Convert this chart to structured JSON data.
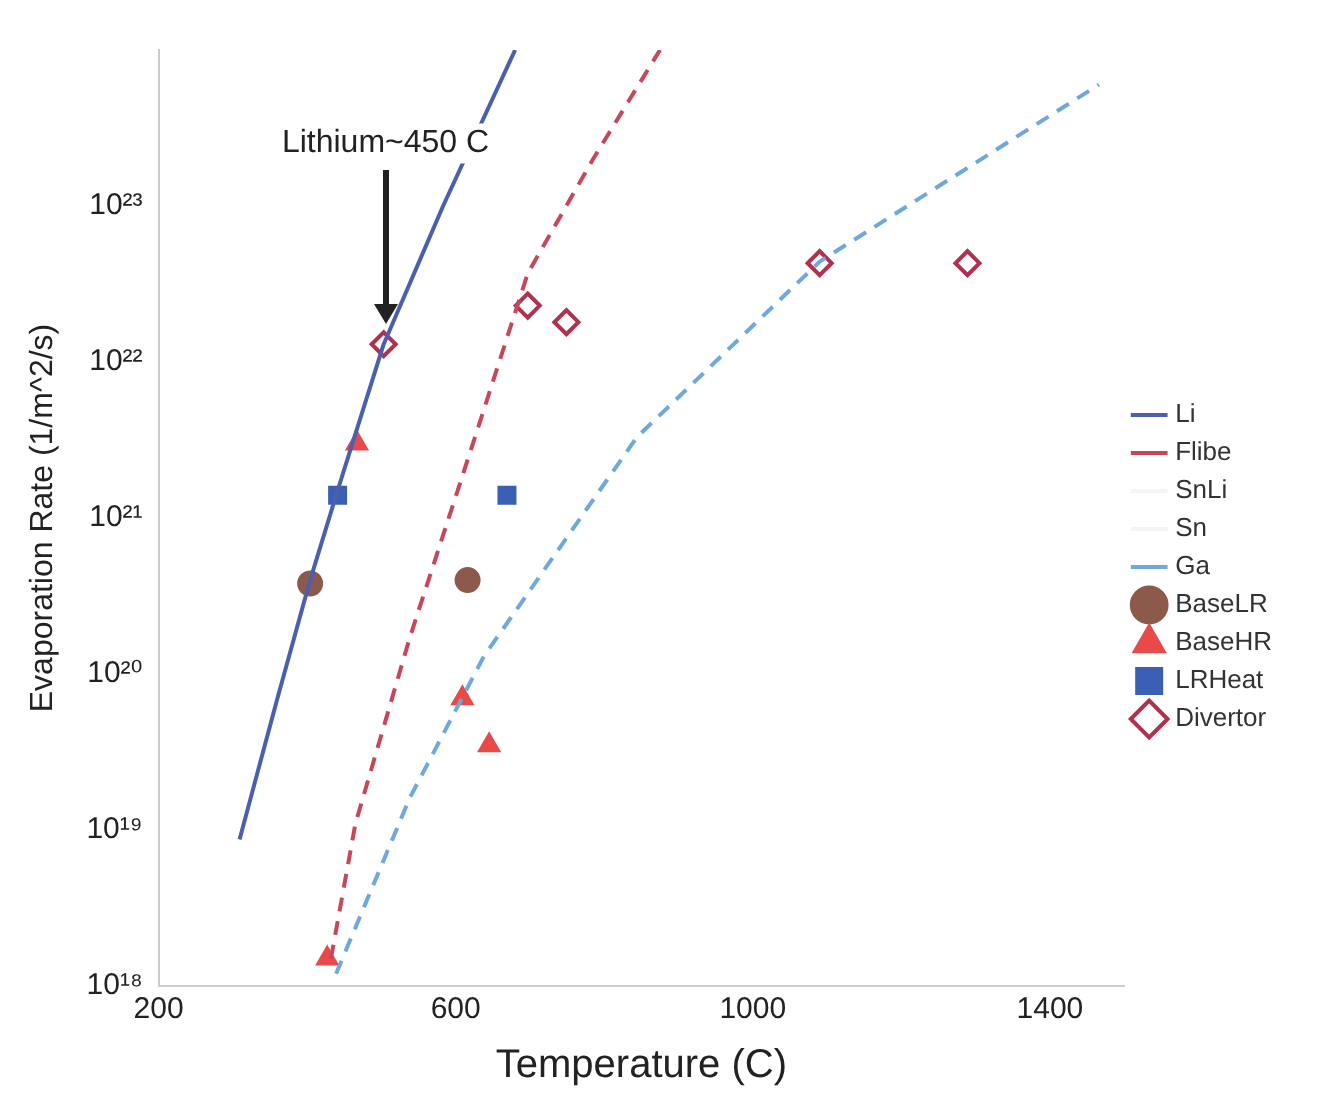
{
  "chart_data": {
    "type": "line",
    "xlabel": "Temperature (C)",
    "ylabel": "Evaporation Rate (1/m^2/s)",
    "xlim": [
      200,
      1500
    ],
    "xticks": [
      200,
      600,
      1000,
      1400
    ],
    "ylim": [
      1e+18,
      1e+24
    ],
    "yticks": [
      {
        "value": 1e+18,
        "label": "10¹⁸"
      },
      {
        "value": 1e+19,
        "label": "10¹⁹"
      },
      {
        "value": 1e+20,
        "label": "10²⁰"
      },
      {
        "value": 1e+21,
        "label": "10²¹"
      },
      {
        "value": 1e+22,
        "label": "10²²"
      },
      {
        "value": 1e+23,
        "label": "10²³"
      }
    ],
    "log": "y",
    "grid": false,
    "legend": "right",
    "annotations": [
      "Lithium~450 C"
    ],
    "series": [
      {
        "name": "Li",
        "line_style": "solid",
        "color": "#4a5fb0",
        "x": [
          309,
          360,
          404,
          441,
          503,
          583,
          680
        ],
        "values": [
          8.7e+18,
          7e+19,
          4e+20,
          1.5e+21,
          1.3e+22,
          1e+23,
          1e+24
        ]
      },
      {
        "name": "Flibe",
        "line_style": "dashed",
        "color": "#c8465a",
        "x": [
          432,
          465,
          538,
          626,
          697,
          785,
          875
        ],
        "values": [
          1.5e+18,
          1.1e+19,
          1.7e+20,
          3.3e+21,
          3.7e+22,
          2e+23,
          1e+24
        ]
      },
      {
        "name": "SnLi",
        "line_style": "solid",
        "color": "#f4f4f4"
      },
      {
        "name": "Sn",
        "line_style": "solid",
        "color": "#f4f4f4"
      },
      {
        "name": "Ga",
        "line_style": "dashed",
        "color": "#6fa8dc",
        "x": [
          439,
          538,
          638,
          844,
          1090,
          1466
        ],
        "values": [
          1.2e+18,
          1.6e+19,
          1.3e+20,
          3.3e+21,
          4.4e+22,
          6e+23
        ]
      },
      {
        "name": "BaseLR",
        "type": "scatter",
        "marker": "circle",
        "color": "#8b5a4a",
        "x": [
          404,
          616
        ],
        "values": [
          3.8e+20,
          4e+20
        ]
      },
      {
        "name": "BaseHR",
        "type": "scatter",
        "marker": "triangle",
        "color": "#e84a4a",
        "x": [
          467,
          609,
          645,
          427
        ],
        "values": [
          3e+21,
          7e+19,
          3.5e+19,
          1.5e+18
        ]
      },
      {
        "name": "LRHeat",
        "type": "scatter",
        "marker": "square",
        "color": "#3a5fb5",
        "x": [
          441,
          669
        ],
        "values": [
          1.4e+21,
          1.4e+21
        ]
      },
      {
        "name": "Divertor",
        "type": "scatter",
        "marker": "diamond",
        "color": "#b03050",
        "x": [
          503,
          697,
          749,
          1090,
          1289
        ],
        "values": [
          1.3e+22,
          2.3e+22,
          1.8e+22,
          4.3e+22,
          4.3e+22
        ]
      }
    ]
  }
}
